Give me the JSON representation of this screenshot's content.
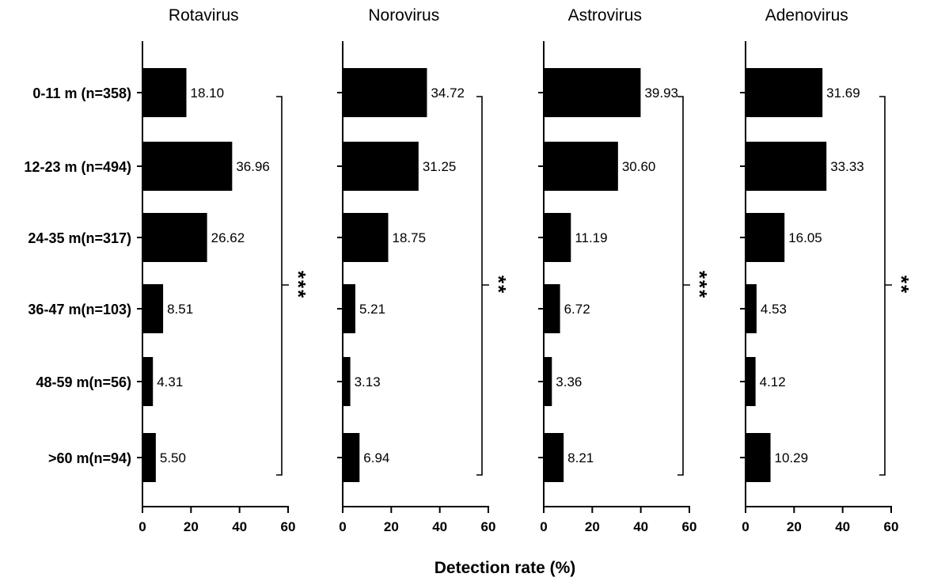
{
  "chart_data": {
    "type": "bar",
    "orientation": "horizontal",
    "xlabel": "Detection rate (%)",
    "xlim": [
      0,
      60
    ],
    "xticks": [
      0,
      20,
      40,
      60
    ],
    "categories": [
      "0-11 m (n=358)",
      "12-23 m (n=494)",
      "24-35 m(n=317)",
      "36-47 m(n=103)",
      "48-59 m(n=56)",
      ">60 m(n=94)"
    ],
    "panels": [
      {
        "title": "Rotavirus",
        "values": [
          18.1,
          36.96,
          26.62,
          8.51,
          4.31,
          5.5
        ],
        "labels": [
          "18.10",
          "36.96",
          "26.62",
          "8.51",
          "4.31",
          "5.50"
        ],
        "significance": "***"
      },
      {
        "title": "Norovirus",
        "values": [
          34.72,
          31.25,
          18.75,
          5.21,
          3.13,
          6.94
        ],
        "labels": [
          "34.72",
          "31.25",
          "18.75",
          "5.21",
          "3.13",
          "6.94"
        ],
        "significance": "**"
      },
      {
        "title": "Astrovirus",
        "values": [
          39.93,
          30.6,
          11.19,
          6.72,
          3.36,
          8.21
        ],
        "labels": [
          "39.93",
          "30.60",
          "11.19",
          "6.72",
          "3.36",
          "8.21"
        ],
        "significance": "***"
      },
      {
        "title": "Adenovirus",
        "values": [
          31.69,
          33.33,
          16.05,
          4.53,
          4.12,
          10.29
        ],
        "labels": [
          "31.69",
          "33.33",
          "16.05",
          "4.53",
          "4.12",
          "10.29"
        ],
        "significance": "**"
      }
    ]
  }
}
